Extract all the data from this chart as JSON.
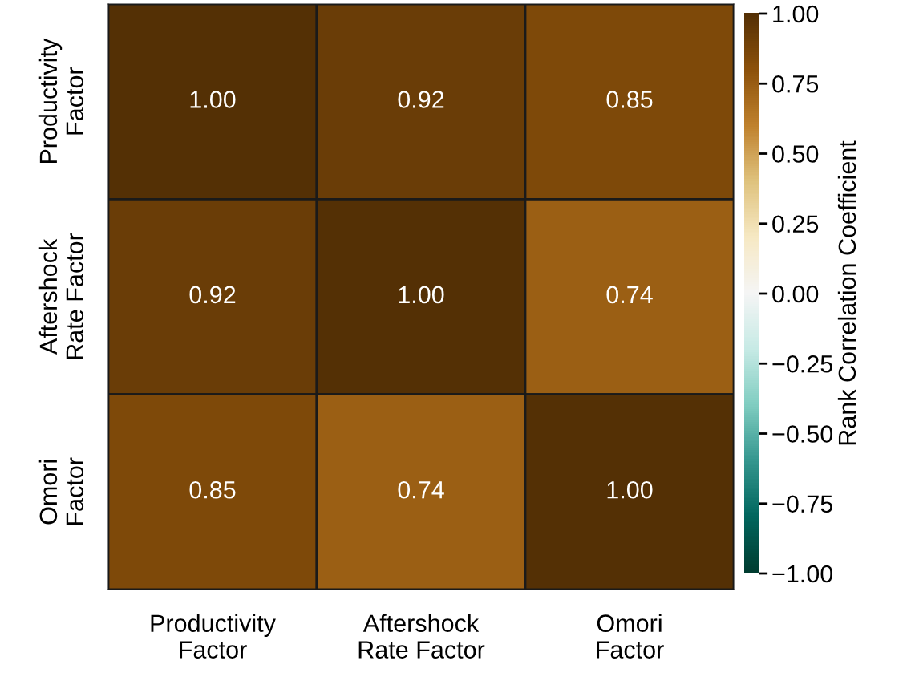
{
  "chart_data": {
    "type": "heatmap",
    "categories": [
      "Productivity\nFactor",
      "Aftershock\nRate Factor",
      "Omori\nFactor"
    ],
    "y_categories": [
      "Productivity\nFactor",
      "Aftershock\nRate Factor",
      "Omori\nFactor"
    ],
    "cells": [
      [
        1.0,
        0.92,
        0.85
      ],
      [
        0.92,
        1.0,
        0.74
      ],
      [
        0.85,
        0.74,
        1.0
      ]
    ],
    "cell_labels": [
      [
        "1.00",
        "0.92",
        "0.85"
      ],
      [
        "0.92",
        "1.00",
        "0.74"
      ],
      [
        "0.85",
        "0.74",
        "1.00"
      ]
    ],
    "clabel": "Rank Correlation Coefficient",
    "clim": [
      -1,
      1
    ],
    "cticks": [
      {
        "value": -1,
        "label": "−1.00"
      },
      {
        "value": -0.75,
        "label": "−0.75"
      },
      {
        "value": -0.5,
        "label": "−0.50"
      },
      {
        "value": -0.25,
        "label": "−0.25"
      },
      {
        "value": 0,
        "label": "0.00"
      },
      {
        "value": 0.25,
        "label": "0.25"
      },
      {
        "value": 0.5,
        "label": "0.50"
      },
      {
        "value": 0.75,
        "label": "0.75"
      },
      {
        "value": 1,
        "label": "1.00"
      }
    ]
  }
}
